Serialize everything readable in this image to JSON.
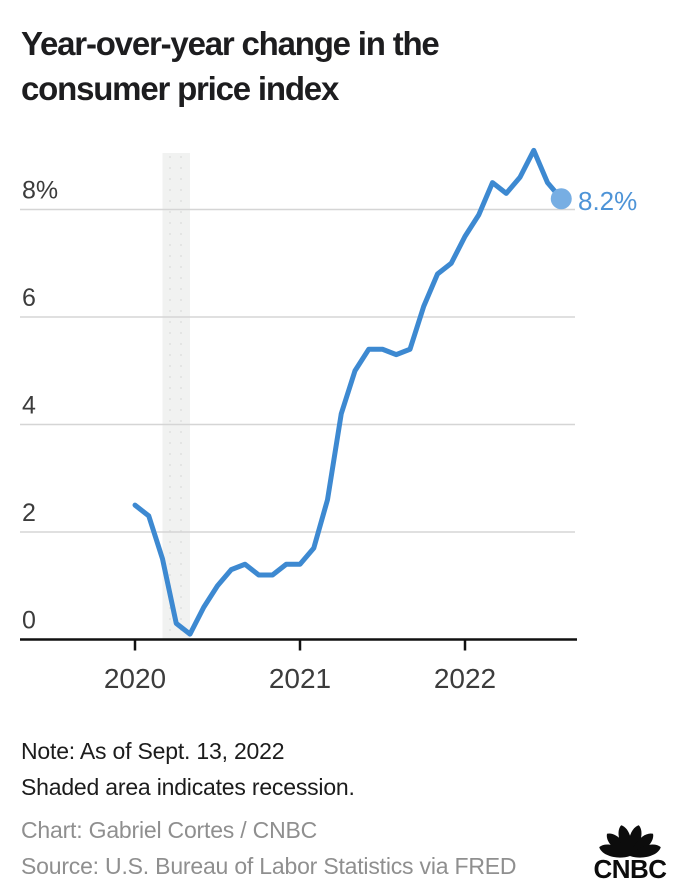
{
  "header": {
    "title": "Year-over-year change in the consumer price index",
    "title_lines": [
      "Year-over-year change in the",
      "consumer price index"
    ]
  },
  "chart_data": {
    "type": "line",
    "title": "Year-over-year change in the consumer price index",
    "xlabel": "",
    "ylabel": "",
    "x": [
      "2020-01",
      "2020-02",
      "2020-03",
      "2020-04",
      "2020-05",
      "2020-06",
      "2020-07",
      "2020-08",
      "2020-09",
      "2020-10",
      "2020-11",
      "2020-12",
      "2021-01",
      "2021-02",
      "2021-03",
      "2021-04",
      "2021-05",
      "2021-06",
      "2021-07",
      "2021-08",
      "2021-09",
      "2021-10",
      "2021-11",
      "2021-12",
      "2022-01",
      "2022-02",
      "2022-03",
      "2022-04",
      "2022-05",
      "2022-06",
      "2022-07",
      "2022-08"
    ],
    "series": [
      {
        "name": "CPI year-over-year % change",
        "values": [
          2.5,
          2.3,
          1.5,
          0.3,
          0.1,
          0.6,
          1.0,
          1.3,
          1.4,
          1.2,
          1.2,
          1.4,
          1.4,
          1.7,
          2.6,
          4.2,
          5.0,
          5.4,
          5.4,
          5.3,
          5.4,
          6.2,
          6.8,
          7.0,
          7.5,
          7.9,
          8.5,
          8.3,
          8.6,
          9.1,
          8.5,
          8.2
        ]
      }
    ],
    "end_point_label": "8.2%",
    "yticks": [
      0,
      2,
      4,
      6,
      8
    ],
    "ytick_labels": [
      "0",
      "2",
      "4",
      "6",
      "8%"
    ],
    "ylim": [
      0,
      9.6
    ],
    "xtick_labels": [
      "2020",
      "2021",
      "2022"
    ],
    "xtick_month_indices": [
      0,
      12,
      24
    ],
    "grid": "horizontal",
    "legend": "none",
    "recession_band": {
      "drawn_start": "2020-03",
      "drawn_end": "2020-05",
      "meaning": "Shaded area indicates recession."
    }
  },
  "footer": {
    "note_line1": "Note: As of Sept. 13, 2022",
    "note_line2": "Shaded area indicates recession.",
    "credit": "Chart: Gabriel Cortes / CNBC",
    "source": "Source: U.S. Bureau of Labor Statistics via FRED",
    "logo_text": "CNBC"
  },
  "colors": {
    "line": "#3d89d1",
    "dot": "#77aee3",
    "end_label": "#4e94d7",
    "grid": "#d5d5d5",
    "axis": "#111111",
    "band": "#f1f2f1",
    "band_dot": "#e3e4e3",
    "title_text": "#1d1d1f",
    "tick_text": "#3c3c3c",
    "note_text": "#1c1c1c",
    "muted_text": "#8f8f8f",
    "logo": "#0c0c0c"
  }
}
